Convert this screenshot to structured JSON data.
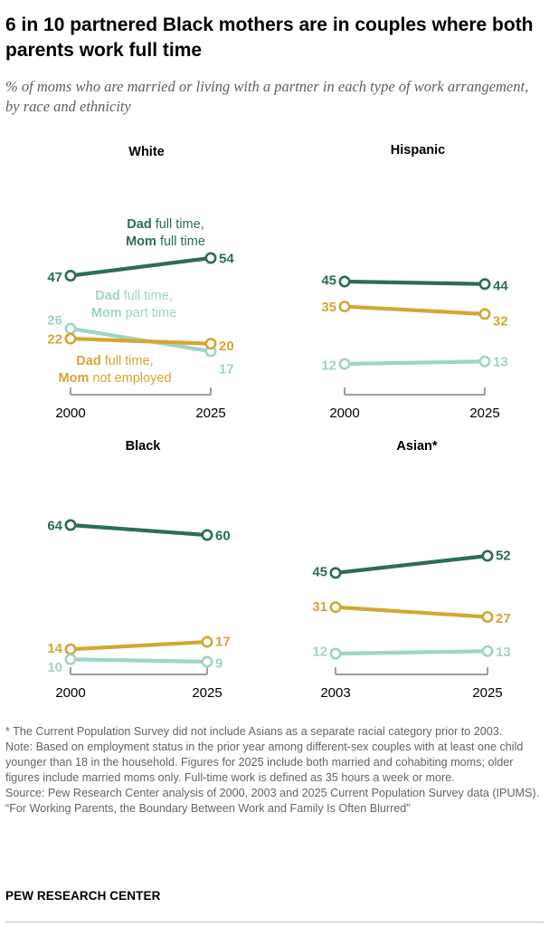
{
  "title": "6 in 10 partnered Black mothers are in couples where both parents work full time",
  "subtitle": "% of moms who are married or living with a partner in each type of work arrangement, by race and ethnicity",
  "colors": {
    "dad_ft_mom_ft": "#2e6b5b",
    "dad_ft_mom_pt": "#9fd3c7",
    "dad_ft_mom_ne": "#d4a634",
    "axis": "#7f7f7f"
  },
  "chart_data": [
    {
      "type": "line",
      "title": "White",
      "x": [
        "2000",
        "2025"
      ],
      "series": [
        {
          "name": "Dad full time, Mom full time",
          "key": "dad_ft_mom_ft",
          "values": [
            47,
            54
          ]
        },
        {
          "name": "Dad full time, Mom part time",
          "key": "dad_ft_mom_pt",
          "values": [
            26,
            17
          ]
        },
        {
          "name": "Dad full time, Mom not employed",
          "key": "dad_ft_mom_ne",
          "values": [
            22,
            20
          ]
        }
      ]
    },
    {
      "type": "line",
      "title": "Hispanic",
      "x": [
        "2000",
        "2025"
      ],
      "series": [
        {
          "key": "dad_ft_mom_ft",
          "values": [
            45,
            44
          ]
        },
        {
          "key": "dad_ft_mom_ne",
          "values": [
            35,
            32
          ]
        },
        {
          "key": "dad_ft_mom_pt",
          "values": [
            12,
            13
          ]
        }
      ]
    },
    {
      "type": "line",
      "title": "Black",
      "x": [
        "2000",
        "2025"
      ],
      "series": [
        {
          "key": "dad_ft_mom_ft",
          "values": [
            64,
            60
          ]
        },
        {
          "key": "dad_ft_mom_ne",
          "values": [
            14,
            17
          ]
        },
        {
          "key": "dad_ft_mom_pt",
          "values": [
            10,
            9
          ]
        }
      ]
    },
    {
      "type": "line",
      "title": "Asian*",
      "x": [
        "2003",
        "2025"
      ],
      "series": [
        {
          "key": "dad_ft_mom_ft",
          "values": [
            45,
            52
          ]
        },
        {
          "key": "dad_ft_mom_ne",
          "values": [
            31,
            27
          ]
        },
        {
          "key": "dad_ft_mom_pt",
          "values": [
            12,
            13
          ]
        }
      ]
    }
  ],
  "legend_labels": [
    {
      "key": "dad_ft_mom_ft",
      "bold": "Dad",
      "rest": " full time,",
      "bold2": "Mom",
      "rest2": " full time"
    },
    {
      "key": "dad_ft_mom_pt",
      "bold": "Dad",
      "rest": " full time,",
      "bold2": "Mom",
      "rest2": " part time"
    },
    {
      "key": "dad_ft_mom_ne",
      "bold": "Dad",
      "rest": " full time,",
      "bold2": "Mom",
      "rest2": " not employed"
    }
  ],
  "notes": {
    "asterisk": "* The Current Population Survey did not include Asians as a separate racial category prior to 2003.",
    "note": "Note: Based on employment status in the prior year among different-sex couples with at least one child younger than 18 in the household. Figures for 2025 include both married and cohabiting moms; older figures include married moms only. Full-time work is defined as 35 hours a week or more.",
    "source": "Source: Pew Research Center analysis of 2000, 2003 and 2025 Current Population Survey data (IPUMS).",
    "report": "“For Working Parents, the Boundary Between Work and Family Is Often Blurred”"
  },
  "brand": "PEW RESEARCH CENTER"
}
